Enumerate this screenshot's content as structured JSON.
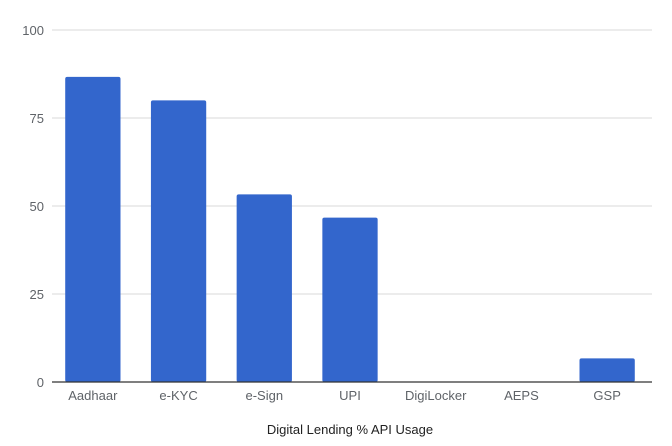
{
  "chart_data": {
    "type": "bar",
    "categories": [
      "Aadhaar",
      "e-KYC",
      "e-Sign",
      "UPI",
      "DigiLocker",
      "AEPS",
      "GSP"
    ],
    "values": [
      86.7,
      80.0,
      53.3,
      46.7,
      0,
      0,
      6.7
    ],
    "title": "",
    "xlabel": "Digital Lending % API Usage",
    "ylabel": "",
    "ylim": [
      0,
      100
    ],
    "yticks": [
      0,
      25,
      50,
      75,
      100
    ],
    "grid": true,
    "legend": "none",
    "bar_color": "#3366cc"
  }
}
